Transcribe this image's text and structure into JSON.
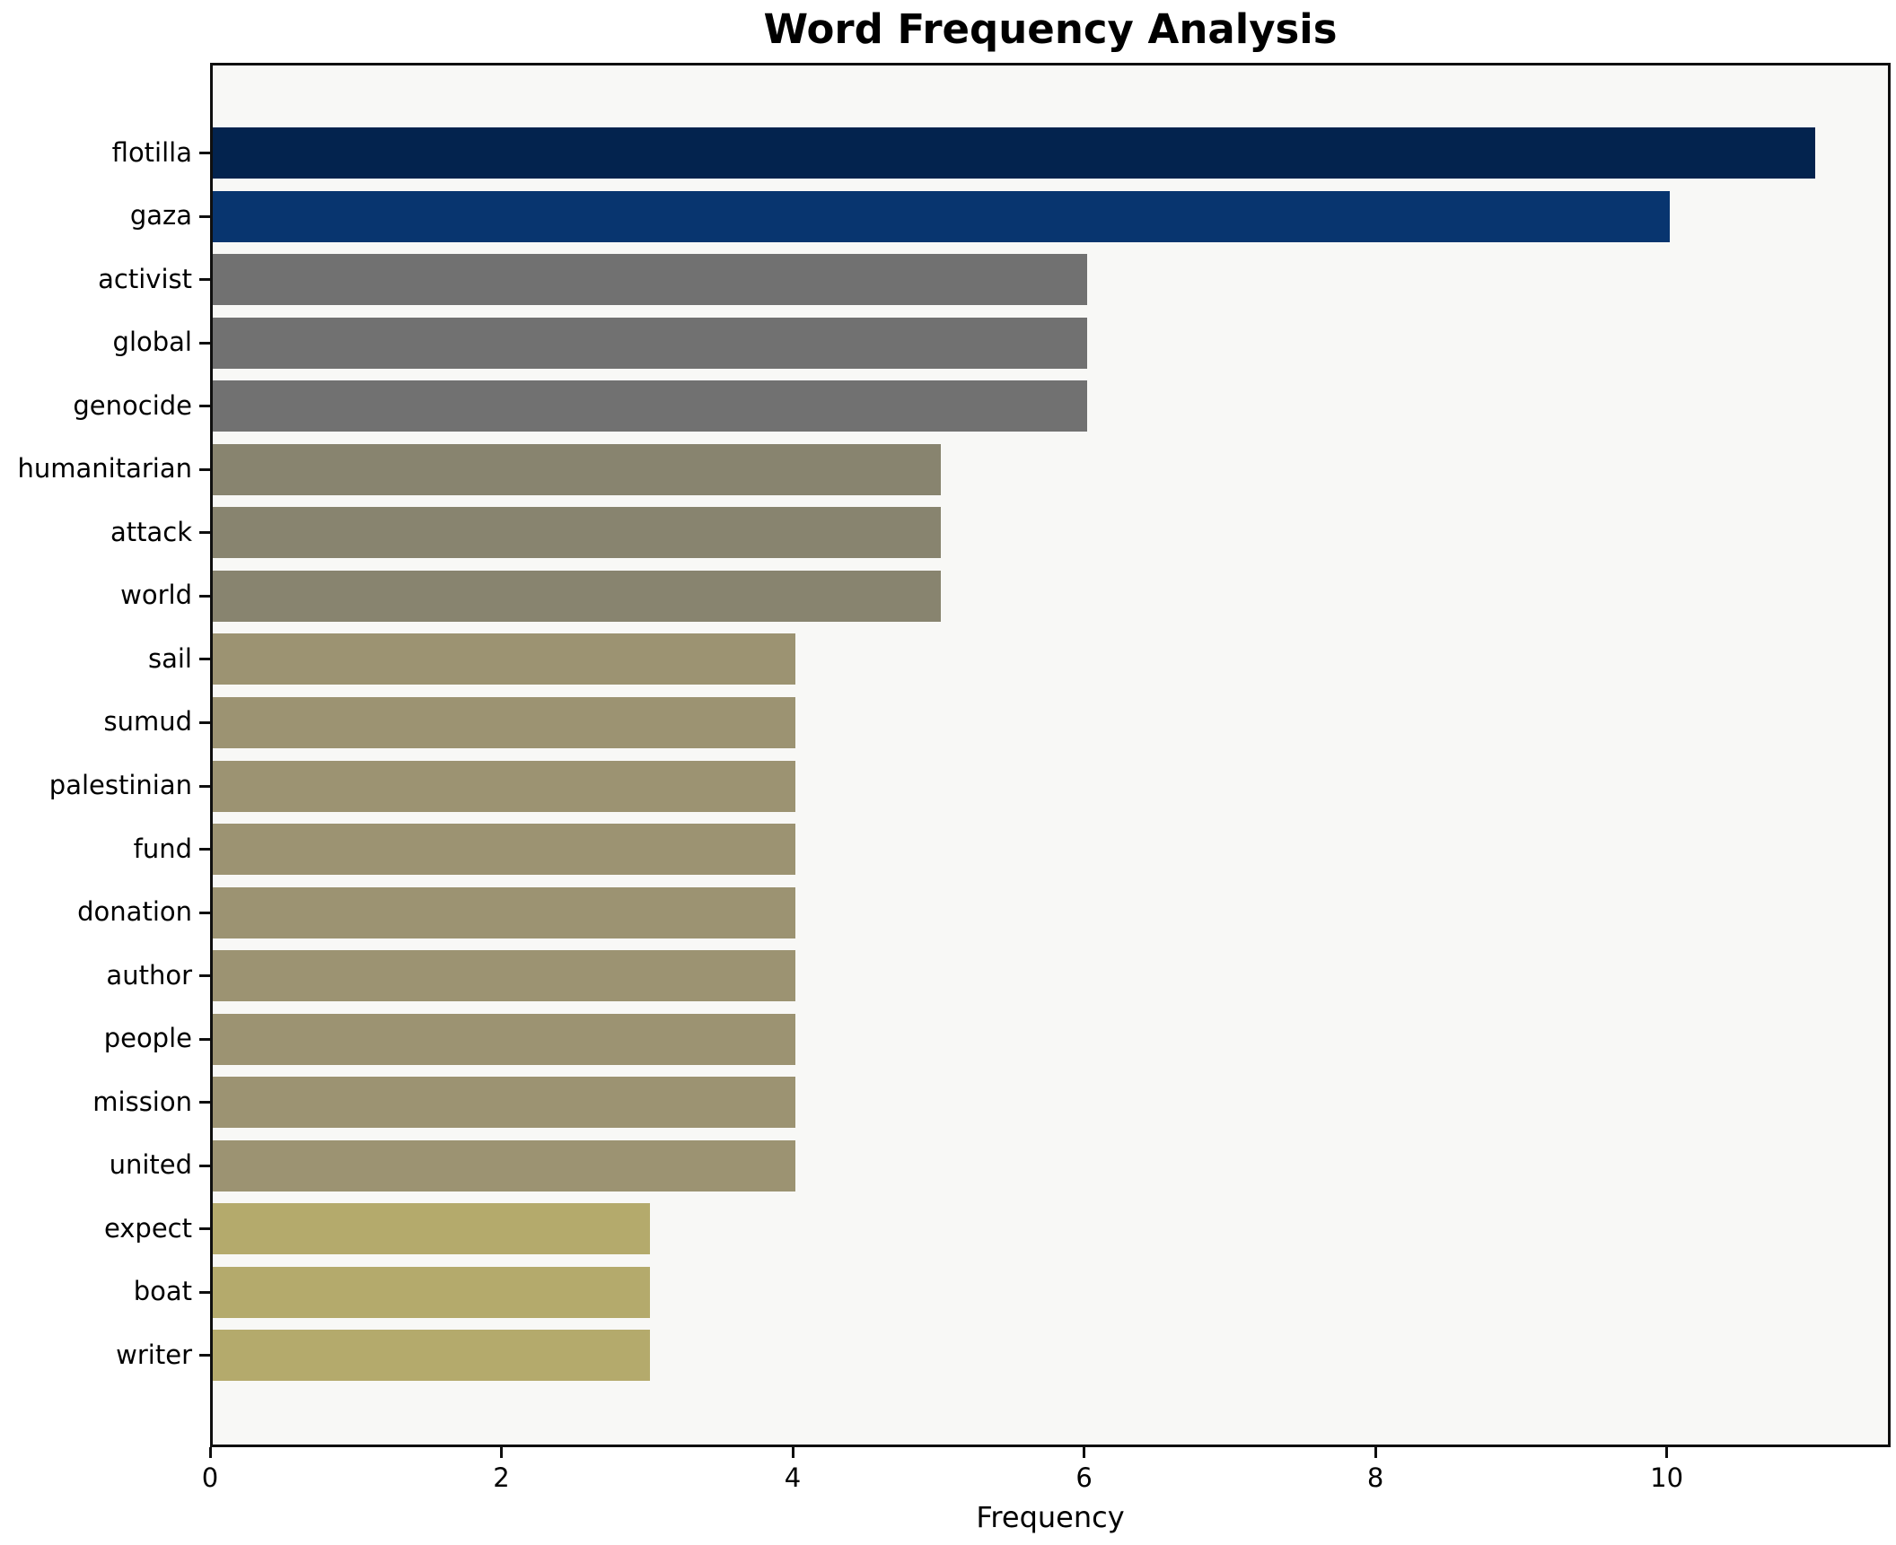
{
  "chart_data": {
    "type": "bar",
    "orientation": "horizontal",
    "title": "Word Frequency Analysis",
    "xlabel": "Frequency",
    "ylabel": "",
    "xlim": [
      0,
      11.5
    ],
    "xticks": [
      0,
      2,
      4,
      6,
      8,
      10
    ],
    "grid": false,
    "legend": null,
    "figure_background": "#ffffff",
    "plot_background": "#f8f8f6",
    "spine_color": "#0f0f0f",
    "text_color": "#000000",
    "categories": [
      "flotilla",
      "gaza",
      "activist",
      "global",
      "genocide",
      "humanitarian",
      "attack",
      "world",
      "sail",
      "sumud",
      "palestinian",
      "fund",
      "donation",
      "author",
      "people",
      "mission",
      "united",
      "expect",
      "boat",
      "writer"
    ],
    "values": [
      11,
      10,
      6,
      6,
      6,
      5,
      5,
      5,
      4,
      4,
      4,
      4,
      4,
      4,
      4,
      4,
      4,
      3,
      3,
      3
    ],
    "bar_colors": [
      "#03234e",
      "#08356f",
      "#717171",
      "#717171",
      "#717171",
      "#88846f",
      "#88846f",
      "#88846f",
      "#9c9372",
      "#9c9372",
      "#9c9372",
      "#9c9372",
      "#9c9372",
      "#9c9372",
      "#9c9372",
      "#9c9372",
      "#9c9372",
      "#b4aa6c",
      "#b4aa6c",
      "#b4aa6c"
    ]
  }
}
